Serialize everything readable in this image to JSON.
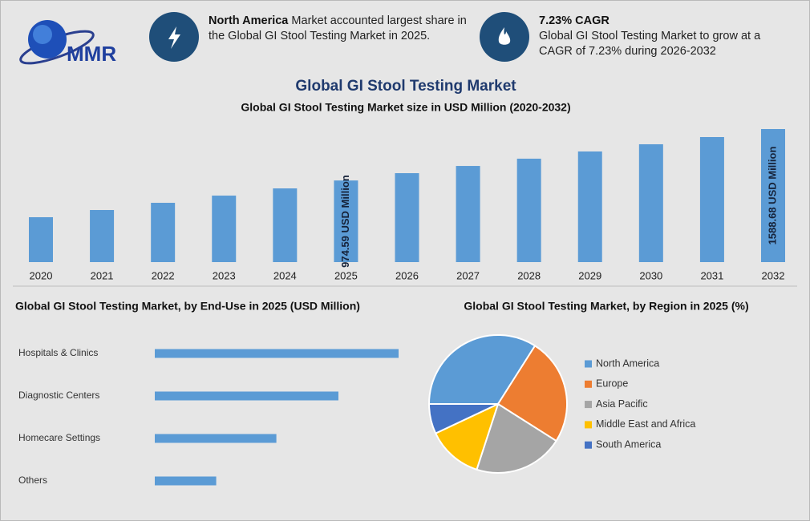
{
  "header": {
    "logo": "MMR",
    "highlights": [
      {
        "bold": "North America",
        "text": "Market accounted largest share in the Global GI Stool Testing Market in 2025."
      },
      {
        "bold": "7.23% CAGR",
        "text": "Global GI Stool Testing Market to grow at a CAGR of 7.23% during 2026-2032"
      }
    ],
    "title": "Global GI Stool Testing Market"
  },
  "chart_data": [
    {
      "type": "bar",
      "title": "Global GI Stool Testing Market size in USD Million (2020-2032)",
      "categories": [
        "2020",
        "2021",
        "2022",
        "2023",
        "2024",
        "2025",
        "2026",
        "2027",
        "2028",
        "2029",
        "2030",
        "2031",
        "2032"
      ],
      "values": [
        536,
        622,
        708,
        794,
        880,
        974.59,
        1062,
        1148,
        1235,
        1321,
        1407,
        1493,
        1588.68
      ],
      "value_labels": [
        null,
        null,
        null,
        null,
        null,
        "974.59 USD Million",
        null,
        null,
        null,
        null,
        null,
        null,
        "1588.68 USD Million"
      ],
      "color": "#5b9bd5"
    },
    {
      "type": "barh",
      "title": "Global GI Stool Testing Market, by End-Use in 2025 (USD Million)",
      "categories": [
        "Hospitals & Clinics",
        "Diagnostic Centers",
        "Homecare Settings",
        "Others"
      ],
      "values": [
        389,
        293,
        194,
        98
      ],
      "color": "#5b9bd5"
    },
    {
      "type": "pie",
      "title": "Global GI Stool Testing Market, by Region in 2025 (%)",
      "categories": [
        "North America",
        "Europe",
        "Asia Pacific",
        "Middle East and Africa",
        "South America"
      ],
      "values": [
        34,
        25,
        21,
        13,
        7
      ],
      "colors": [
        "#5b9bd5",
        "#ed7d31",
        "#a5a5a5",
        "#ffc000",
        "#4472c4"
      ],
      "legend": "right"
    }
  ]
}
